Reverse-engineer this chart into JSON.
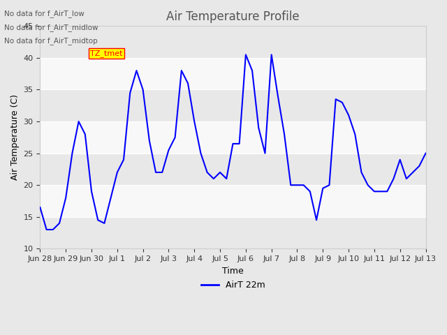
{
  "title": "Air Temperature Profile",
  "xlabel": "Time",
  "ylabel": "Air Temperature (C)",
  "ylim": [
    10,
    45
  ],
  "yticks": [
    10,
    15,
    20,
    25,
    30,
    35,
    40,
    45
  ],
  "line_color": "blue",
  "line_width": 1.5,
  "background_color": "#e8e8e8",
  "plot_bg_color": "#f0f0f0",
  "legend_label": "AirT 22m",
  "legend_line_color": "blue",
  "annotations": [
    "No data for f_AirT_low",
    "No data for f_AirT_midlow",
    "No data for f_AirT_midtop"
  ],
  "tz_tmet_box": true,
  "x_tick_labels": [
    "Jun 28",
    "Jun 29",
    "Jun 30",
    "Jul 1",
    "Jul 2",
    "Jul 3",
    "Jul 4",
    "Jul 5",
    "Jul 6",
    "Jul 7",
    "Jul 8",
    "Jul 9",
    "Jul 10",
    "Jul 11",
    "Jul 12",
    "Jul 13"
  ],
  "time_values": [
    0,
    0.25,
    0.5,
    0.75,
    1,
    1.25,
    1.5,
    1.75,
    2,
    2.25,
    2.5,
    2.75,
    3,
    3.25,
    3.5,
    3.75,
    4,
    4.25,
    4.5,
    4.75,
    5,
    5.25,
    5.5,
    5.75,
    6,
    6.25,
    6.5,
    6.75,
    7,
    7.25,
    7.5,
    7.75,
    8,
    8.25,
    8.5,
    8.75,
    9,
    9.25,
    9.5,
    9.75,
    10,
    10.25,
    10.5,
    10.75,
    11,
    11.25,
    11.5,
    11.75,
    12,
    12.25,
    12.5,
    12.75,
    13,
    13.25,
    13.5,
    13.75,
    14,
    14.25,
    14.5,
    14.75,
    15
  ],
  "temp_values": [
    16.5,
    13,
    13,
    14,
    18,
    25,
    30,
    28,
    19,
    14.5,
    14,
    18,
    22,
    24,
    34.5,
    38,
    35,
    27,
    22,
    22,
    25.5,
    27.5,
    38,
    36,
    30,
    25,
    22,
    21,
    22,
    21,
    26.5,
    26.5,
    40.5,
    38,
    29,
    25,
    40.5,
    34,
    28,
    20,
    20,
    20,
    19,
    14.5,
    19.5,
    20,
    33.5,
    33,
    31,
    28,
    22,
    20,
    19,
    19,
    19,
    21,
    24,
    21,
    22,
    23,
    25
  ],
  "shaded_bands": [
    {
      "ymin": 10,
      "ymax": 20,
      "color": "#d8d8d8"
    },
    {
      "ymin": 25,
      "ymax": 35,
      "color": "#d8d8d8"
    },
    {
      "ymin": 40,
      "ymax": 45,
      "color": "#d8d8d8"
    }
  ]
}
